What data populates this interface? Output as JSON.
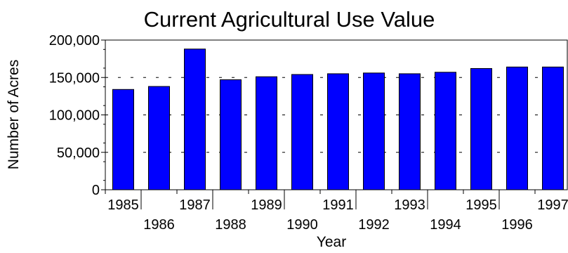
{
  "chart_data": {
    "type": "bar",
    "title": "Current Agricultural Use Value",
    "xlabel": "Year",
    "ylabel": "Number of Acres",
    "categories": [
      "1985",
      "1986",
      "1987",
      "1988",
      "1989",
      "1990",
      "1991",
      "1992",
      "1993",
      "1994",
      "1995",
      "1996",
      "1997"
    ],
    "values": [
      134000,
      138000,
      188000,
      147000,
      151000,
      154000,
      155000,
      156000,
      155000,
      157000,
      162000,
      164000,
      164000
    ],
    "ylim": [
      0,
      200000
    ],
    "y_ticks": [
      0,
      50000,
      100000,
      150000,
      200000
    ],
    "y_tick_labels": [
      "0",
      "50,000",
      "100,000",
      "150,000",
      "200,000"
    ],
    "grid": "dashed horizontal lines at major ticks",
    "bar_color": "#0000ff",
    "bar_edge_color": "#000000"
  }
}
